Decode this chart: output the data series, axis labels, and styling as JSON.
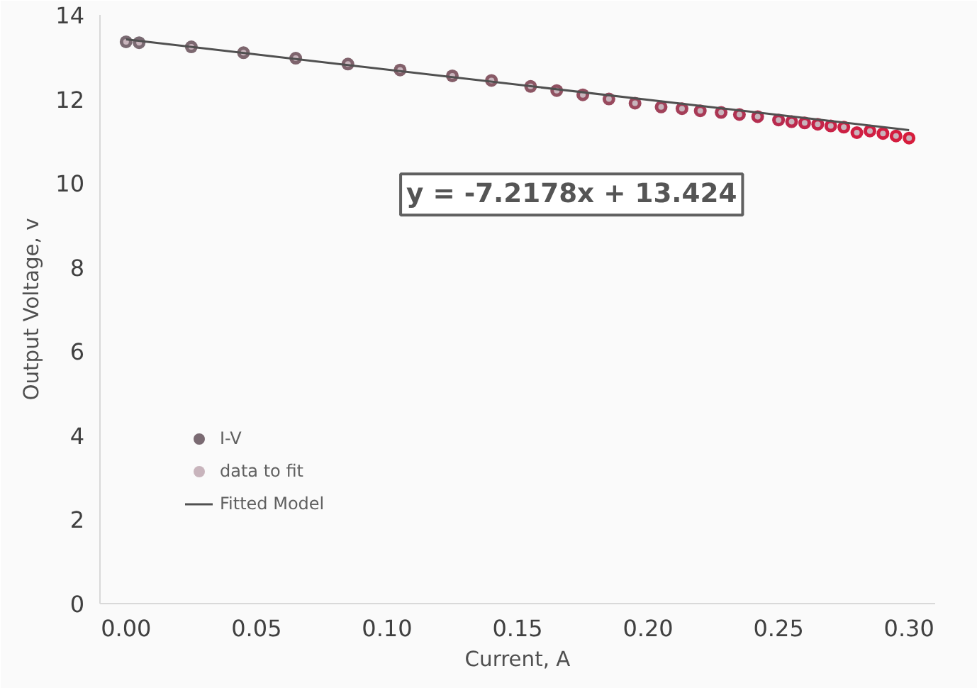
{
  "chart_data": {
    "type": "scatter",
    "xlabel": "Current, A",
    "ylabel": "Output Voltage, v",
    "annotations": [
      "y = -7.2178x + 13.424"
    ],
    "xlim": [
      -0.01,
      0.31
    ],
    "ylim": [
      0,
      14
    ],
    "xticks": [
      {
        "value": 0,
        "label": "0.00"
      },
      {
        "value": 0.05,
        "label": "0.05"
      },
      {
        "value": 0.1,
        "label": "0.10"
      },
      {
        "value": 0.15,
        "label": "0.15"
      },
      {
        "value": 0.2,
        "label": "0.20"
      },
      {
        "value": 0.25,
        "label": "0.25"
      },
      {
        "value": 0.3,
        "label": "0.30"
      }
    ],
    "yticks": [
      0,
      2,
      4,
      6,
      8,
      10,
      12,
      14
    ],
    "grid": false,
    "legend": "bottom left",
    "x": [
      0,
      0.005,
      0.025,
      0.045,
      0.065,
      0.085,
      0.105,
      0.125,
      0.14,
      0.155,
      0.165,
      0.175,
      0.185,
      0.195,
      0.205,
      0.213,
      0.22,
      0.228,
      0.235,
      0.242,
      0.25,
      0.255,
      0.26,
      0.265,
      0.27,
      0.275,
      0.28,
      0.285,
      0.29,
      0.295,
      0.3
    ],
    "series": [
      {
        "name": "I-V",
        "marker": "circle",
        "color": "#7a5f6a",
        "values": [
          13.36,
          13.34,
          13.24,
          13.1,
          12.97,
          12.83,
          12.69,
          12.55,
          12.44,
          12.3,
          12.2,
          12.1,
          12.0,
          11.9,
          11.81,
          11.77,
          11.72,
          11.68,
          11.63,
          11.58,
          11.5,
          11.46,
          11.43,
          11.4,
          11.36,
          11.33,
          11.2,
          11.24,
          11.18,
          11.12,
          11.07
        ],
        "colors": [
          "#7a6a72",
          "#7a6a72",
          "#7c6870",
          "#7d666e",
          "#7e646d",
          "#80626c",
          "#82606a",
          "#845e69",
          "#885a66",
          "#8c5664",
          "#905262",
          "#944e60",
          "#984a5e",
          "#9c465c",
          "#a0425a",
          "#a43e58",
          "#a83a56",
          "#ac3654",
          "#b03252",
          "#b42e50",
          "#b82a4e",
          "#bc284c",
          "#c0264a",
          "#c42448",
          "#c82246",
          "#cc2044",
          "#d01e42",
          "#d01e42",
          "#d21e40",
          "#d41c3e",
          "#d61c3c"
        ]
      },
      {
        "name": "data to fit",
        "marker": "circle",
        "color": "#c8b4bc",
        "values": [
          13.36,
          13.34,
          13.24,
          13.1,
          12.97,
          12.83,
          12.69,
          12.55,
          12.44,
          12.3,
          12.2,
          12.1,
          12.0,
          11.9,
          11.81,
          11.77,
          11.72,
          11.68,
          11.63,
          11.58,
          11.5,
          11.46,
          11.43,
          11.4,
          11.36,
          11.33,
          11.2,
          11.24,
          11.18,
          11.12,
          11.07
        ]
      },
      {
        "name": "Fitted Model",
        "type": "line",
        "color": "#505050",
        "x": [
          0,
          0.3
        ],
        "values": [
          13.42,
          11.26
        ],
        "marker": "none"
      }
    ]
  }
}
